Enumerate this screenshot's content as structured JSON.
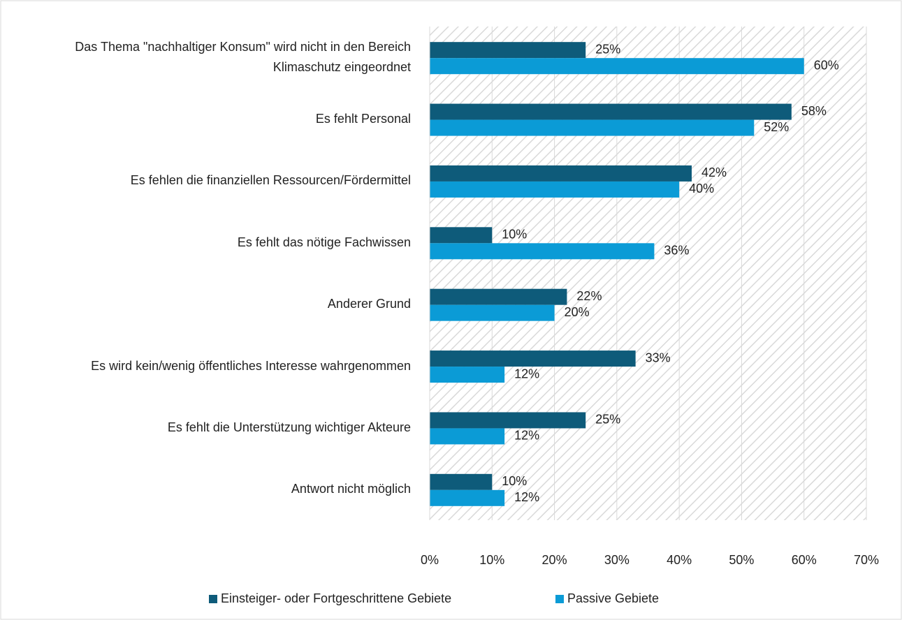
{
  "chart_data": {
    "type": "barh",
    "categories": [
      "Das Thema \"nachhaltiger Konsum\" wird nicht in den Bereich Klimaschutz eingeordnet",
      "Es fehlt Personal",
      "Es fehlen die finanziellen Ressourcen/Fördermittel",
      "Es fehlt das nötige Fachwissen",
      "Anderer Grund",
      "Es wird kein/wenig öffentliches Interesse wahrgenommen",
      "Es fehlt die Unterstützung wichtiger Akteure",
      "Antwort nicht möglich"
    ],
    "series": [
      {
        "name": "Einsteiger- oder Fortgeschrittene Gebiete",
        "color": "#0e5b7a",
        "values": [
          25,
          58,
          42,
          10,
          22,
          33,
          25,
          10
        ],
        "value_labels": [
          "25%",
          "58%",
          "42%",
          "10%",
          "22%",
          "33%",
          "25%",
          "10%"
        ]
      },
      {
        "name": "Passive Gebiete",
        "color": "#0b9bd6",
        "values": [
          60,
          52,
          40,
          36,
          20,
          12,
          12,
          12
        ],
        "value_labels": [
          "60%",
          "52%",
          "40%",
          "36%",
          "20%",
          "12%",
          "12%",
          "12%"
        ]
      }
    ],
    "xlim": [
      0,
      70
    ],
    "xticks": [
      {
        "value": 0,
        "label": "0%"
      },
      {
        "value": 10,
        "label": "10%"
      },
      {
        "value": 20,
        "label": "20%"
      },
      {
        "value": 30,
        "label": "30%"
      },
      {
        "value": 40,
        "label": "40%"
      },
      {
        "value": 50,
        "label": "50%"
      },
      {
        "value": 60,
        "label": "60%"
      },
      {
        "value": 70,
        "label": "70%"
      }
    ],
    "grid": true,
    "legend": "bottom"
  }
}
